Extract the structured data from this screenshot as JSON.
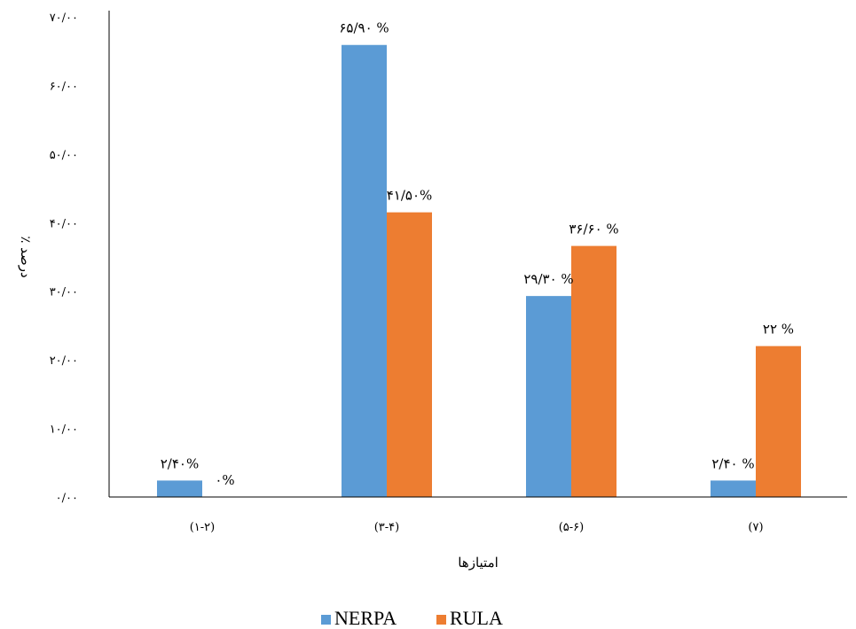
{
  "chart_data": {
    "type": "bar",
    "categories": [
      "(۱-۲)",
      "(۳-۴)",
      "(۵-۶)",
      "(۷)"
    ],
    "xlabel": "امتیازها",
    "ylabel": "٪ درصد",
    "ylim": [
      0,
      70
    ],
    "yticks": [
      0,
      10,
      20,
      30,
      40,
      50,
      60,
      70
    ],
    "ytick_labels": [
      "۰/۰۰",
      "۱۰/۰۰",
      "۲۰/۰۰",
      "۳۰/۰۰",
      "۴۰/۰۰",
      "۵۰/۰۰",
      "۶۰/۰۰",
      "۷۰/۰۰"
    ],
    "grid": false,
    "legend_position": "bottom",
    "series": [
      {
        "name": "NERPA",
        "color": "#5b9bd5",
        "values": [
          2.4,
          65.9,
          29.3,
          2.4
        ],
        "labels": [
          "۲/۴۰%",
          "۶۵/۹۰ %",
          "۲۹/۳۰ %",
          "۲/۴۰ %"
        ]
      },
      {
        "name": "RULA",
        "color": "#ed7d31",
        "values": [
          0,
          41.5,
          36.6,
          22
        ],
        "labels": [
          "۰%",
          "۴۱/۵۰%",
          "۳۶/۶۰ %",
          "۲۲ %"
        ]
      }
    ]
  }
}
